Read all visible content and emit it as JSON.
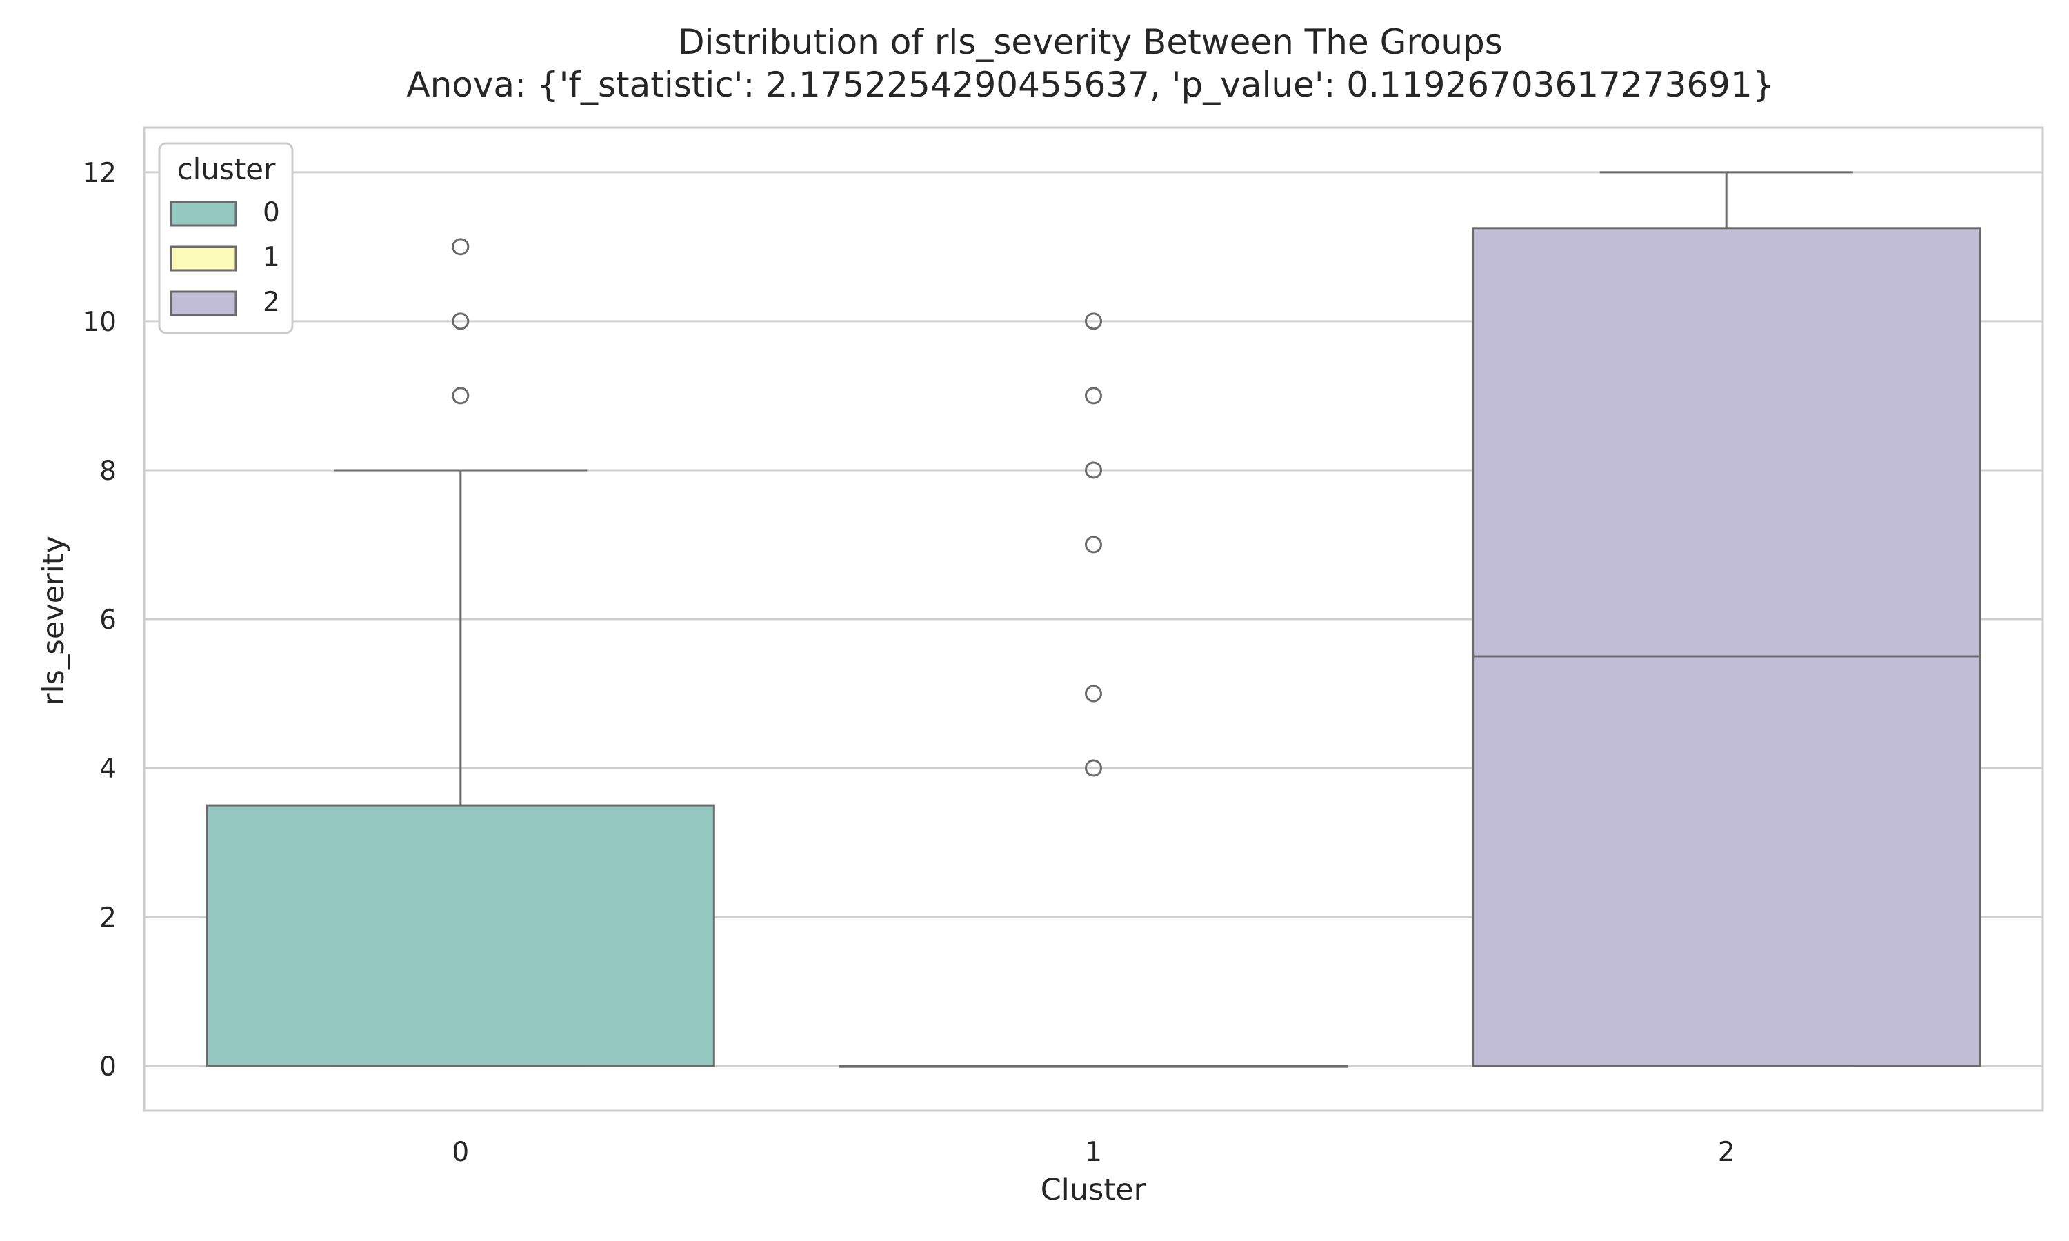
{
  "chart_data": {
    "type": "box",
    "title": "Distribution of rls_severity Between The Groups",
    "subtitle": "Anova: {'f_statistic': 2.1752254290455637, 'p_value': 0.11926703617273691}",
    "xlabel": "Cluster",
    "ylabel": "rls_severity",
    "categories": [
      "0",
      "1",
      "2"
    ],
    "ylim": [
      -0.6,
      12.6
    ],
    "yticks": [
      0,
      2,
      4,
      6,
      8,
      10,
      12
    ],
    "grid": true,
    "legend": {
      "title": "cluster",
      "placement": "top-left",
      "entries": [
        "0",
        "1",
        "2"
      ]
    },
    "series": [
      {
        "category": "0",
        "color": "#95c8c0",
        "q1": 0,
        "median": 0,
        "q3": 3.5,
        "whisker_low": 0,
        "whisker_high": 8,
        "outliers": [
          9,
          10,
          11
        ]
      },
      {
        "category": "1",
        "color": "#fbfab8",
        "q1": 0,
        "median": 0,
        "q3": 0,
        "whisker_low": 0,
        "whisker_high": 0,
        "outliers": [
          4,
          5,
          7,
          8,
          9,
          10
        ]
      },
      {
        "category": "2",
        "color": "#c2bdd6",
        "q1": 0,
        "median": 5.5,
        "q3": 11.25,
        "whisker_low": 0,
        "whisker_high": 12,
        "outliers": []
      }
    ],
    "colors": {
      "grid": "#cfcfcf",
      "frame": "#cccccc",
      "box_edge": "#6b6b6b",
      "text": "#262626"
    }
  }
}
